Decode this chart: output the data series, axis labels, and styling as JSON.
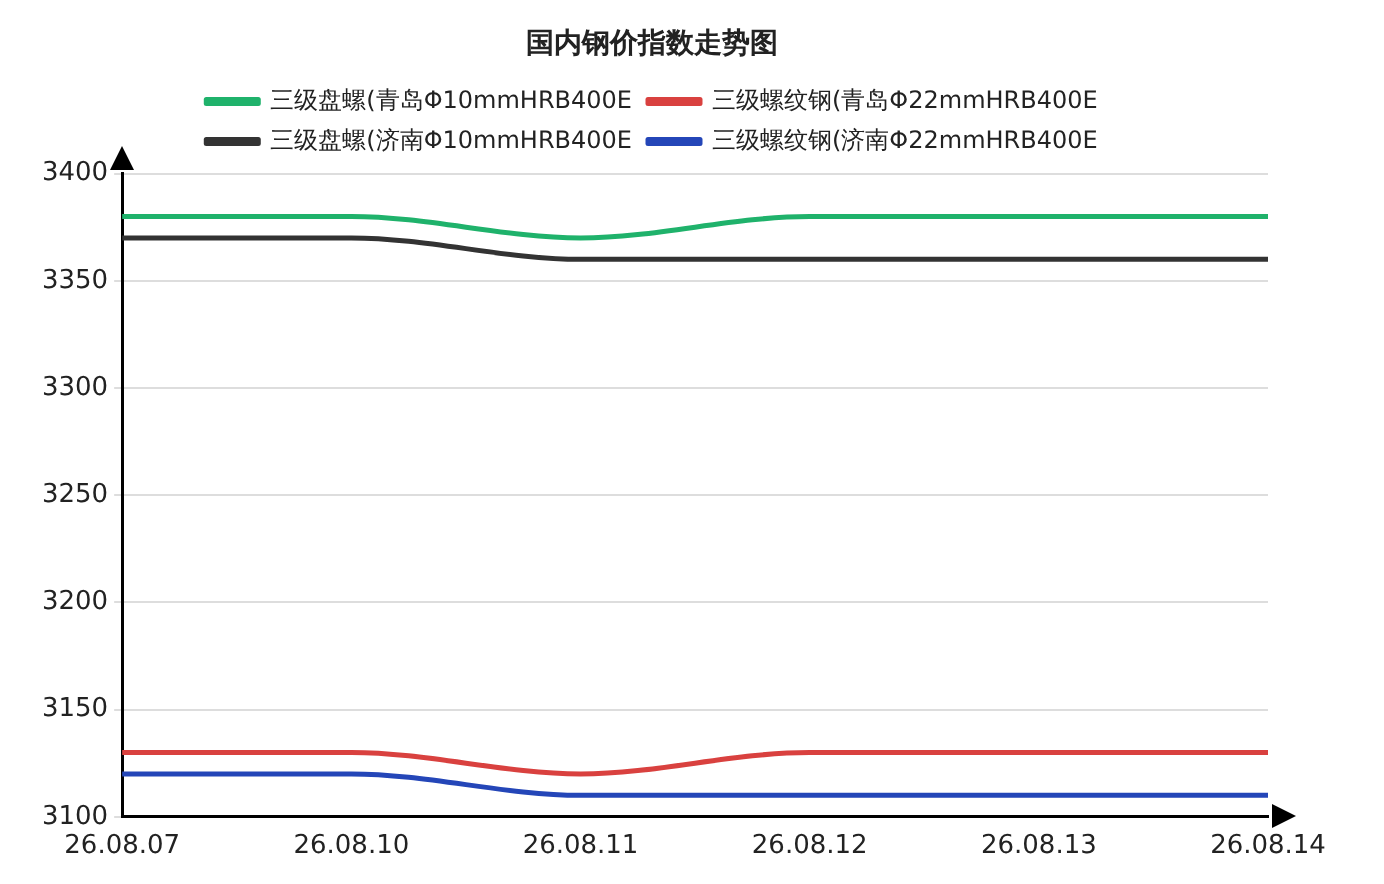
{
  "chart_data": {
    "type": "line",
    "title": "国内钢价指数走势图",
    "categories": [
      "26.08.07",
      "26.08.10",
      "26.08.11",
      "26.08.12",
      "26.08.13",
      "26.08.14"
    ],
    "series": [
      {
        "name": "三级盘螺(青岛Φ10mmHRB400E",
        "color": "#1fb26b",
        "values": [
          3380,
          3380,
          3370,
          3380,
          3380,
          3380
        ]
      },
      {
        "name": "三级螺纹钢(青岛Φ22mmHRB400E",
        "color": "#d9413f",
        "values": [
          3130,
          3130,
          3120,
          3130,
          3130,
          3130
        ]
      },
      {
        "name": "三级盘螺(济南Φ10mmHRB400E",
        "color": "#333333",
        "values": [
          3370,
          3370,
          3360,
          3360,
          3360,
          3360
        ]
      },
      {
        "name": "三级螺纹钢(济南Φ22mmHRB400E",
        "color": "#2446b8",
        "values": [
          3120,
          3120,
          3110,
          3110,
          3110,
          3110
        ]
      }
    ],
    "ylim": [
      3100,
      3400
    ],
    "yticks": [
      3100,
      3150,
      3200,
      3250,
      3300,
      3350,
      3400
    ],
    "grid": "y",
    "legend": "top",
    "marker": "none",
    "line_style": "solid"
  }
}
